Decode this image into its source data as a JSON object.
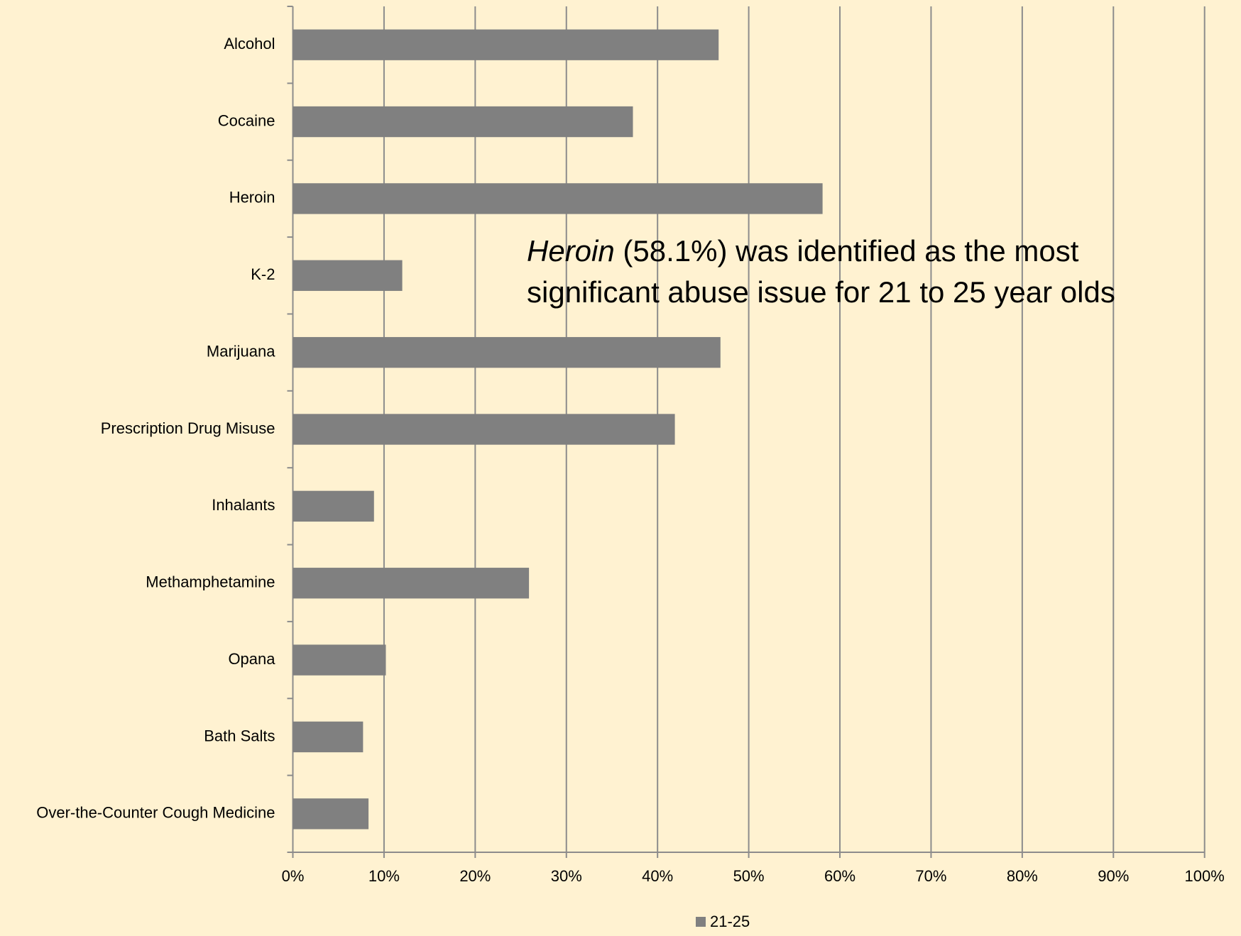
{
  "chart_data": {
    "type": "bar",
    "orientation": "horizontal",
    "categories": [
      "Alcohol",
      "Cocaine",
      "Heroin",
      "K-2",
      "Marijuana",
      "Prescription Drug Misuse",
      "Inhalants",
      "Methamphetamine",
      "Opana",
      "Bath Salts",
      "Over-the-Counter Cough Medicine"
    ],
    "series": [
      {
        "name": "21-25",
        "color": "#808080",
        "values": [
          46.7,
          37.3,
          58.1,
          12.0,
          46.9,
          41.9,
          8.9,
          25.9,
          10.2,
          7.7,
          8.3
        ]
      }
    ],
    "xlim": [
      0,
      100
    ],
    "xticks": [
      {
        "value": 0,
        "label": "0%"
      },
      {
        "value": 10,
        "label": "10%"
      },
      {
        "value": 20,
        "label": "20%"
      },
      {
        "value": 30,
        "label": "30%"
      },
      {
        "value": 40,
        "label": "40%"
      },
      {
        "value": 50,
        "label": "50%"
      },
      {
        "value": 60,
        "label": "60%"
      },
      {
        "value": 70,
        "label": "70%"
      },
      {
        "value": 80,
        "label": "80%"
      },
      {
        "value": 90,
        "label": "90%"
      },
      {
        "value": 100,
        "label": "100%"
      }
    ],
    "grid": true,
    "legend": "bottom",
    "annotation": [
      "Heroin",
      " (58.1%) was identified as the most",
      "significant abuse issue for 21 to 25 year olds"
    ]
  }
}
